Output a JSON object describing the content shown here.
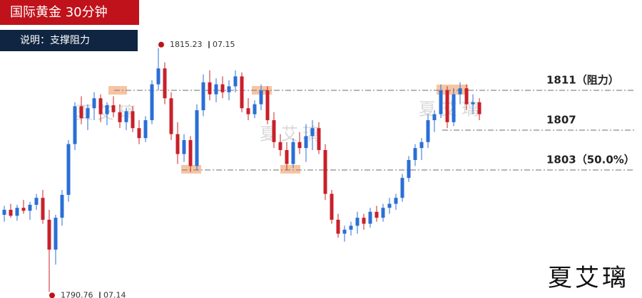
{
  "chart_data": {
    "type": "candlestick",
    "title": "国际黄金 30分钟",
    "subtitle": "说明：支撑阻力",
    "author": "夏艾璃",
    "ylim": [
      1790.14,
      1820.07
    ],
    "up_color": "#2a6fd6",
    "down_color": "#c8202a",
    "levels": [
      {
        "value": 1811,
        "label": "1811（阻力）"
      },
      1807,
      {
        "value": 1803,
        "label": "1803（50.0%）"
      }
    ],
    "extremes": [
      {
        "value": 1815.23,
        "date": "07.15"
      },
      {
        "value": 1790.76,
        "date": "07.14"
      }
    ],
    "ohlc": [
      [
        1798.5,
        1799.4,
        1797.8,
        1799.0
      ],
      [
        1799.0,
        1799.6,
        1798.2,
        1798.4
      ],
      [
        1798.4,
        1799.5,
        1797.9,
        1799.2
      ],
      [
        1799.2,
        1800.0,
        1798.6,
        1798.9
      ],
      [
        1798.9,
        1799.8,
        1798.0,
        1799.5
      ],
      [
        1799.5,
        1800.6,
        1799.0,
        1800.2
      ],
      [
        1800.2,
        1801.0,
        1797.6,
        1798.0
      ],
      [
        1798.0,
        1799.0,
        1790.76,
        1795.0
      ],
      [
        1795.0,
        1798.5,
        1793.5,
        1798.2
      ],
      [
        1798.2,
        1801.0,
        1797.4,
        1800.5
      ],
      [
        1800.5,
        1806.0,
        1799.8,
        1805.6
      ],
      [
        1805.6,
        1809.8,
        1805.0,
        1809.4
      ],
      [
        1809.4,
        1810.4,
        1807.6,
        1808.2
      ],
      [
        1808.2,
        1809.6,
        1807.0,
        1809.2
      ],
      [
        1809.2,
        1810.8,
        1808.0,
        1810.2
      ],
      [
        1810.2,
        1810.6,
        1807.8,
        1808.6
      ],
      [
        1808.6,
        1809.8,
        1807.5,
        1809.5
      ],
      [
        1809.5,
        1810.4,
        1808.3,
        1808.8
      ],
      [
        1808.8,
        1809.6,
        1807.2,
        1807.8
      ],
      [
        1807.8,
        1809.2,
        1807.0,
        1808.9
      ],
      [
        1808.9,
        1809.4,
        1806.8,
        1807.2
      ],
      [
        1807.2,
        1808.0,
        1805.6,
        1806.2
      ],
      [
        1806.2,
        1808.4,
        1805.8,
        1808.0
      ],
      [
        1808.0,
        1812.0,
        1807.6,
        1811.6
      ],
      [
        1811.6,
        1815.23,
        1811.0,
        1813.2
      ],
      [
        1813.2,
        1813.8,
        1809.6,
        1810.2
      ],
      [
        1810.2,
        1810.8,
        1806.0,
        1806.6
      ],
      [
        1806.6,
        1807.8,
        1803.6,
        1804.6
      ],
      [
        1804.6,
        1806.6,
        1803.8,
        1806.0
      ],
      [
        1806.0,
        1806.4,
        1802.8,
        1803.4
      ],
      [
        1803.4,
        1809.6,
        1803.0,
        1809.0
      ],
      [
        1809.0,
        1812.6,
        1808.4,
        1811.8
      ],
      [
        1811.8,
        1813.0,
        1810.0,
        1810.6
      ],
      [
        1810.6,
        1812.2,
        1809.8,
        1811.6
      ],
      [
        1811.6,
        1812.4,
        1810.2,
        1810.8
      ],
      [
        1810.8,
        1812.0,
        1810.0,
        1811.4
      ],
      [
        1811.4,
        1813.0,
        1810.8,
        1812.4
      ],
      [
        1812.4,
        1812.8,
        1808.8,
        1809.2
      ],
      [
        1809.2,
        1810.2,
        1808.0,
        1808.6
      ],
      [
        1808.6,
        1810.0,
        1808.2,
        1809.6
      ],
      [
        1809.6,
        1811.6,
        1809.0,
        1811.0
      ],
      [
        1811.0,
        1811.4,
        1807.6,
        1808.0
      ],
      [
        1808.0,
        1808.8,
        1805.2,
        1805.8
      ],
      [
        1805.8,
        1806.6,
        1804.4,
        1805.0
      ],
      [
        1805.0,
        1805.8,
        1803.0,
        1803.6
      ],
      [
        1803.6,
        1806.2,
        1803.2,
        1805.8
      ],
      [
        1805.8,
        1806.8,
        1804.6,
        1805.2
      ],
      [
        1805.2,
        1807.6,
        1803.8,
        1806.4
      ],
      [
        1806.4,
        1808.0,
        1805.0,
        1807.2
      ],
      [
        1807.2,
        1807.8,
        1804.6,
        1805.0
      ],
      [
        1805.0,
        1805.6,
        1800.0,
        1800.6
      ],
      [
        1800.6,
        1801.0,
        1797.6,
        1798.0
      ],
      [
        1798.0,
        1798.6,
        1796.2,
        1796.6
      ],
      [
        1796.6,
        1797.4,
        1795.8,
        1797.0
      ],
      [
        1797.0,
        1797.8,
        1796.4,
        1797.4
      ],
      [
        1797.4,
        1798.8,
        1796.6,
        1798.2
      ],
      [
        1798.2,
        1798.6,
        1797.0,
        1797.6
      ],
      [
        1797.6,
        1799.2,
        1797.2,
        1798.8
      ],
      [
        1798.8,
        1799.4,
        1797.8,
        1798.2
      ],
      [
        1798.2,
        1799.6,
        1797.8,
        1799.2
      ],
      [
        1799.2,
        1800.2,
        1798.6,
        1799.6
      ],
      [
        1799.6,
        1800.6,
        1799.0,
        1800.2
      ],
      [
        1800.2,
        1802.6,
        1799.8,
        1802.2
      ],
      [
        1802.2,
        1804.4,
        1801.8,
        1804.0
      ],
      [
        1804.0,
        1805.6,
        1803.4,
        1805.2
      ],
      [
        1805.2,
        1806.2,
        1804.0,
        1805.8
      ],
      [
        1805.8,
        1808.6,
        1805.2,
        1808.0
      ],
      [
        1808.0,
        1809.0,
        1806.8,
        1808.6
      ],
      [
        1808.6,
        1811.6,
        1808.2,
        1811.0
      ],
      [
        1811.0,
        1811.4,
        1807.2,
        1807.8
      ],
      [
        1807.8,
        1811.2,
        1807.4,
        1810.6
      ],
      [
        1810.6,
        1811.8,
        1809.6,
        1811.2
      ],
      [
        1811.2,
        1811.6,
        1809.0,
        1809.6
      ],
      [
        1809.6,
        1810.6,
        1808.6,
        1809.8
      ],
      [
        1809.8,
        1810.2,
        1808.0,
        1808.6
      ]
    ]
  }
}
